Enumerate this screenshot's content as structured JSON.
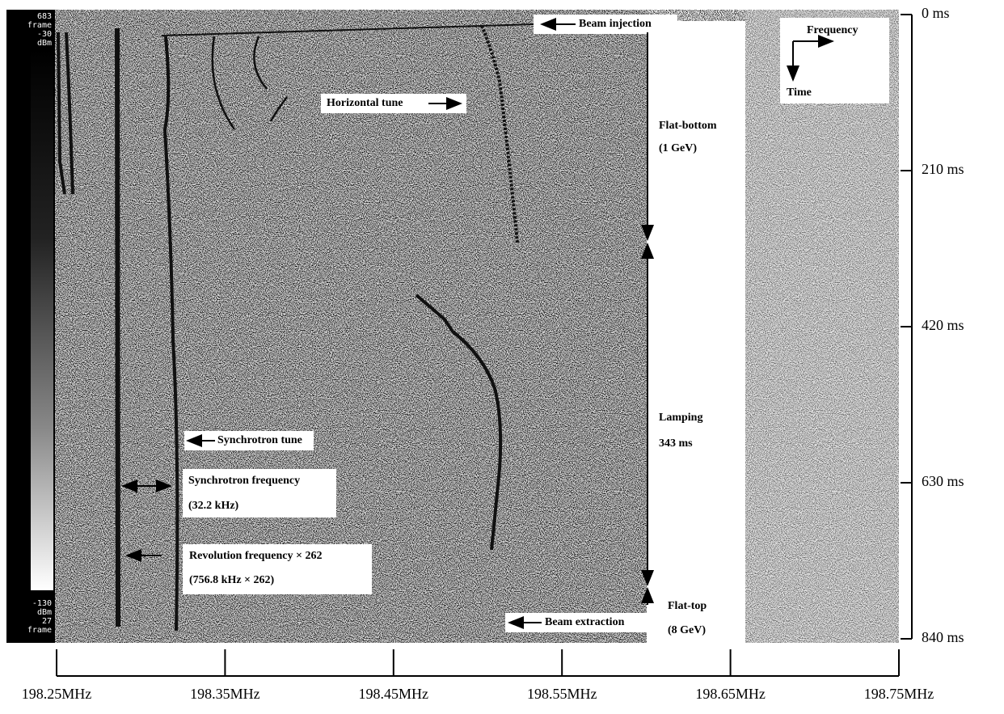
{
  "chart_data": {
    "type": "spectrogram",
    "xlim": [
      198.25,
      198.75
    ],
    "xticks": [
      {
        "value": 198.25,
        "label": "198.25MHz"
      },
      {
        "value": 198.35,
        "label": "198.35MHz"
      },
      {
        "value": 198.45,
        "label": "198.45MHz"
      },
      {
        "value": 198.55,
        "label": "198.55MHz"
      },
      {
        "value": 198.65,
        "label": "198.65MHz"
      },
      {
        "value": 198.75,
        "label": "198.75MHz"
      }
    ],
    "ylim": [
      0,
      840
    ],
    "yticks": [
      {
        "value": 0,
        "label": "0 ms"
      },
      {
        "value": 210,
        "label": "210 ms"
      },
      {
        "value": 420,
        "label": "420 ms"
      },
      {
        "value": 630,
        "label": "630 ms"
      },
      {
        "value": 840,
        "label": "840 ms"
      }
    ],
    "colorbar": {
      "top": [
        683,
        "frame",
        -30,
        "dBm"
      ],
      "bottom": [
        -130,
        "dBm",
        27,
        "frame"
      ]
    },
    "annotations": {
      "beam_injection": "Beam injection",
      "horizontal_tune": "Horizontal tune",
      "flat_bottom": "Flat-bottom",
      "flat_bottom_energy": "(1 GeV)",
      "lamping": "Lamping",
      "lamping_duration": "343 ms",
      "flat_top": "Flat-top",
      "flat_top_energy": "(8 GeV)",
      "beam_extraction": "Beam extraction",
      "synchrotron_tune": "Synchrotron tune",
      "synchrotron_frequency": "Synchrotron frequency",
      "synchrotron_frequency_value": "(32.2 kHz)",
      "revolution_frequency": "Revolution frequency × 262",
      "revolution_frequency_value": "(756.8 kHz × 262)",
      "legend_frequency": "Frequency",
      "legend_time": "Time"
    }
  }
}
